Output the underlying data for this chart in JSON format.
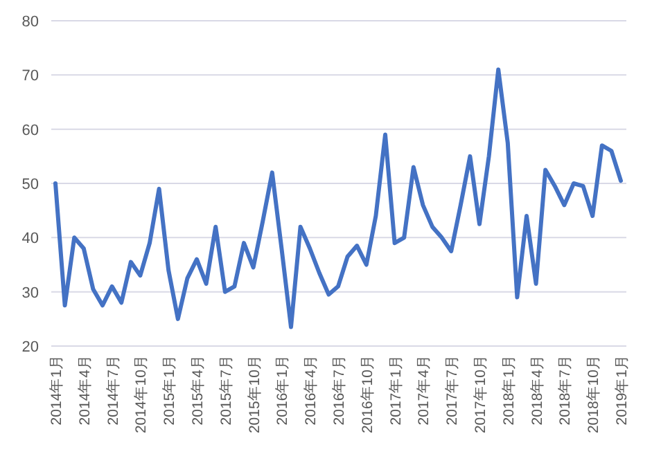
{
  "chart_data": {
    "type": "line",
    "categories": [
      "2014年1月",
      null,
      null,
      "2014年4月",
      null,
      null,
      "2014年7月",
      null,
      null,
      "2014年10月",
      null,
      null,
      "2015年1月",
      null,
      null,
      "2015年4月",
      null,
      null,
      "2015年7月",
      null,
      null,
      "2015年10月",
      null,
      null,
      "2016年1月",
      null,
      null,
      "2016年4月",
      null,
      null,
      "2016年7月",
      null,
      null,
      "2016年10月",
      null,
      null,
      "2017年1月",
      null,
      null,
      "2017年4月",
      null,
      null,
      "2017年7月",
      null,
      null,
      "2017年10月",
      null,
      null,
      "2018年1月",
      null,
      null,
      "2018年4月",
      null,
      null,
      "2018年7月",
      null,
      null,
      "2018年10月",
      null,
      null,
      "2019年1月"
    ],
    "series": [
      {
        "color": "#4472c4",
        "values": [
          50,
          27.5,
          40,
          38,
          30.5,
          27.5,
          31,
          28,
          35.5,
          33,
          39,
          49,
          34,
          25,
          32.5,
          36,
          31.5,
          42,
          30,
          31,
          39,
          34.5,
          43,
          52,
          38,
          23.5,
          42,
          38,
          33.5,
          29.5,
          31,
          36.5,
          38.5,
          35,
          44,
          59,
          39,
          40,
          53,
          46,
          42,
          40,
          37.5,
          46,
          55,
          42.5,
          55,
          71,
          57.5,
          29,
          44,
          31.5,
          52.5,
          49.5,
          46,
          50,
          49.5,
          44,
          57,
          56,
          50.5
        ]
      }
    ],
    "ylim": [
      20,
      80
    ],
    "yticks": [
      20,
      30,
      40,
      50,
      60,
      70,
      80
    ],
    "grid": "y",
    "marker": "none",
    "line_style": "solid"
  }
}
